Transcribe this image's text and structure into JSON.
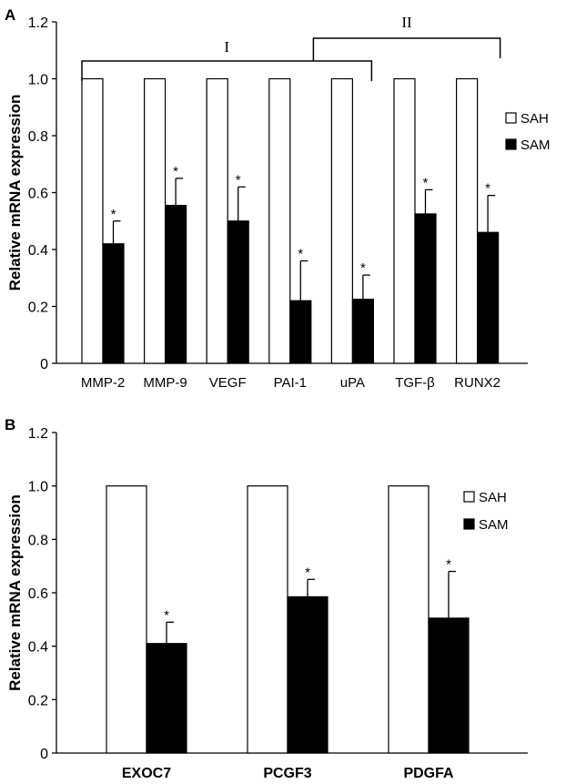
{
  "panels": [
    {
      "label": "A",
      "ylabel": "Relative mRNA expression",
      "yticks": [
        "0",
        "0.2",
        "0.4",
        "0.6",
        "0.8",
        "1.0",
        "1.2"
      ],
      "legend": {
        "items": [
          {
            "name": "SAH",
            "color": "#ffffff"
          },
          {
            "name": "SAM",
            "color": "#000000"
          }
        ],
        "placement": "right"
      },
      "brackets": [
        {
          "label": "I",
          "from_category": "MMP-2",
          "to_category": "uPA"
        },
        {
          "label": "II",
          "from_category": "uPA",
          "to_category": "RUNX2"
        }
      ]
    },
    {
      "label": "B",
      "ylabel": "Relative mRNA expression",
      "yticks": [
        "0",
        "0.2",
        "0.4",
        "0.6",
        "0.8",
        "1.0",
        "1.2"
      ],
      "legend": {
        "items": [
          {
            "name": "SAH",
            "color": "#ffffff"
          },
          {
            "name": "SAM",
            "color": "#000000"
          }
        ],
        "placement": "right"
      },
      "brackets": []
    }
  ],
  "chart_data": [
    {
      "type": "bar",
      "panel": "A",
      "categories": [
        "MMP-2",
        "MMP-9",
        "VEGF",
        "PAI-1",
        "uPA",
        "TGF-β",
        "RUNX2"
      ],
      "series": [
        {
          "name": "SAH",
          "values": [
            1.0,
            1.0,
            1.0,
            1.0,
            1.0,
            1.0,
            1.0
          ]
        },
        {
          "name": "SAM",
          "values": [
            0.42,
            0.555,
            0.5,
            0.22,
            0.225,
            0.525,
            0.46
          ],
          "errors": [
            0.08,
            0.095,
            0.12,
            0.14,
            0.085,
            0.085,
            0.13
          ],
          "significance": [
            "*",
            "*",
            "*",
            "*",
            "*",
            "*",
            "*"
          ]
        }
      ],
      "ylabel": "Relative mRNA expression",
      "ylim": [
        0,
        1.2
      ],
      "grid": false,
      "legend": "right"
    },
    {
      "type": "bar",
      "panel": "B",
      "categories": [
        "EXOC7",
        "PCGF3",
        "PDGFA"
      ],
      "series": [
        {
          "name": "SAH",
          "values": [
            1.0,
            1.0,
            1.0
          ]
        },
        {
          "name": "SAM",
          "values": [
            0.41,
            0.585,
            0.505
          ],
          "errors": [
            0.08,
            0.065,
            0.175
          ],
          "significance": [
            "*",
            "*",
            "*"
          ]
        }
      ],
      "ylabel": "Relative mRNA expression",
      "ylim": [
        0,
        1.2
      ],
      "grid": false,
      "legend": "right"
    }
  ]
}
